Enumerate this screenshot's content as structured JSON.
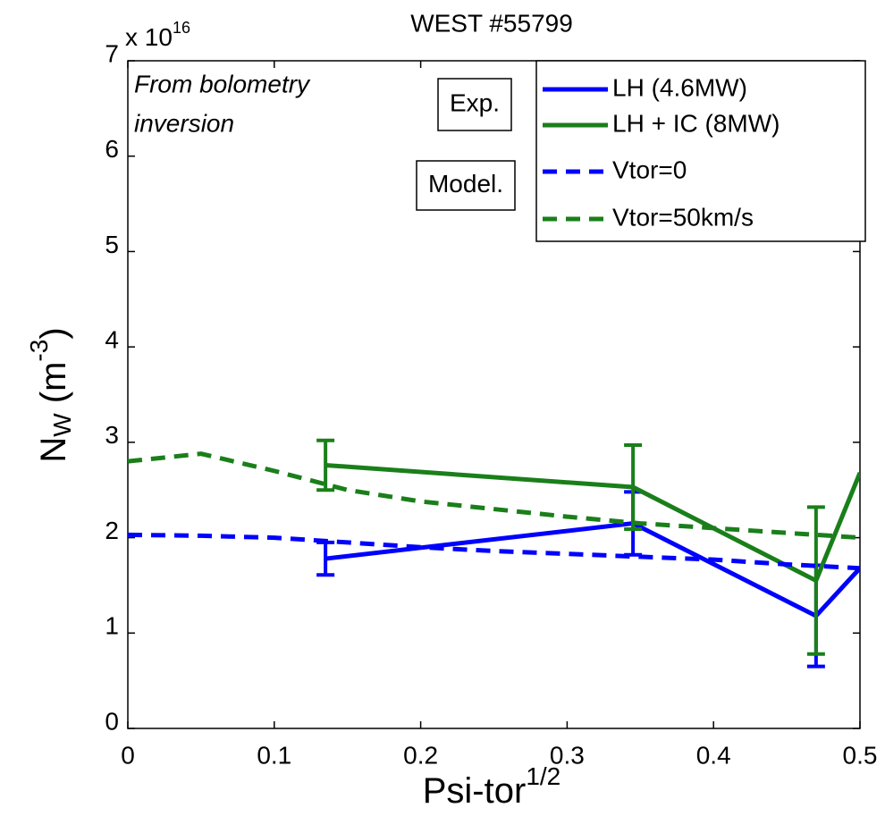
{
  "chart_data": {
    "type": "line",
    "title": "WEST #55799",
    "multiplier": {
      "base": "x 10",
      "sup": "16"
    },
    "xlabel": {
      "base": "Psi-tor",
      "sup": "1/2"
    },
    "ylabel": {
      "base": "N",
      "sub": "W",
      "rest": " (m",
      "sup": "-3",
      "end": ")"
    },
    "annotation": [
      "From bolometry",
      "inversion"
    ],
    "legend_groups": [
      "Exp.",
      "Model."
    ],
    "xlim": [
      0,
      0.5
    ],
    "xticks": [
      0,
      0.1,
      0.2,
      0.3,
      0.4,
      0.5
    ],
    "ylim": [
      0,
      7
    ],
    "yticks": [
      0,
      1,
      2,
      3,
      4,
      5,
      6,
      7
    ],
    "series": [
      {
        "name": "LH (4.6MW)",
        "color": "#0000ff",
        "linestyle": "solid",
        "x": [
          0.135,
          0.345,
          0.47,
          0.5
        ],
        "values": [
          1.78,
          2.15,
          1.18,
          1.68
        ],
        "errors": [
          0.17,
          0.33,
          0.53,
          null
        ]
      },
      {
        "name": "LH + IC (8MW)",
        "color": "#1a7f1a",
        "linestyle": "solid",
        "x": [
          0.135,
          0.345,
          0.47,
          0.5
        ],
        "values": [
          2.76,
          2.53,
          1.55,
          2.68
        ],
        "errors": [
          0.26,
          0.44,
          0.77,
          null
        ]
      },
      {
        "name": "Vtor=0",
        "color": "#0000ff",
        "linestyle": "dashed",
        "x": [
          0,
          0.05,
          0.1,
          0.15,
          0.2,
          0.25,
          0.3,
          0.35,
          0.4,
          0.45,
          0.5
        ],
        "values": [
          2.03,
          2.02,
          2.0,
          1.95,
          1.9,
          1.86,
          1.83,
          1.8,
          1.77,
          1.72,
          1.68
        ]
      },
      {
        "name": "Vtor=50km/s",
        "color": "#1a7f1a",
        "linestyle": "dashed",
        "x": [
          0,
          0.05,
          0.1,
          0.15,
          0.2,
          0.25,
          0.3,
          0.35,
          0.4,
          0.45,
          0.5
        ],
        "values": [
          2.8,
          2.88,
          2.7,
          2.5,
          2.38,
          2.3,
          2.22,
          2.15,
          2.1,
          2.05,
          2.0
        ]
      }
    ]
  }
}
